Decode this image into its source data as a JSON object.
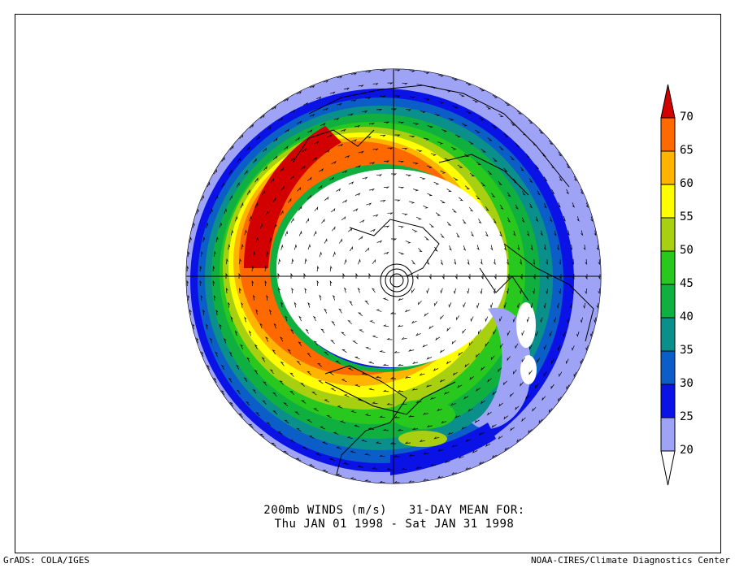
{
  "title": {
    "line1": "200mb WINDS (m/s)   31-DAY MEAN FOR:",
    "line2": "Thu JAN 01 1998 - Sat JAN 31 1998"
  },
  "footer": {
    "left": "GrADS: COLA/IGES",
    "right": "NOAA-CIRES/Climate Diagnostics Center"
  },
  "colorbar": {
    "levels": [
      {
        "value": "20",
        "color": "#9fa3f5"
      },
      {
        "value": "25",
        "color": "#0a12e6"
      },
      {
        "value": "30",
        "color": "#0b5ec8"
      },
      {
        "value": "35",
        "color": "#0a8f8a"
      },
      {
        "value": "40",
        "color": "#10b040"
      },
      {
        "value": "45",
        "color": "#28c81e"
      },
      {
        "value": "50",
        "color": "#a8d010"
      },
      {
        "value": "55",
        "color": "#ffff00"
      },
      {
        "value": "60",
        "color": "#ffb400"
      },
      {
        "value": "65",
        "color": "#ff6a00"
      },
      {
        "value": "70",
        "color": "#d20000"
      }
    ],
    "under_color": "#ffffff",
    "over_color": "#c80000"
  },
  "map": {
    "projection": "north-polar-stereographic",
    "field": "wind speed shaded with wind direction arrows"
  }
}
